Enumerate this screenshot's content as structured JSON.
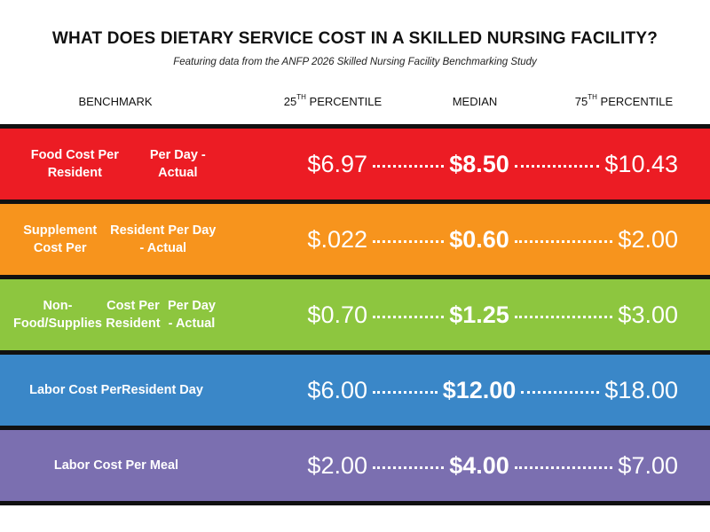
{
  "title": "WHAT DOES DIETARY SERVICE COST IN A SKILLED NURSING FACILITY?",
  "subtitle": "Featuring data from the ANFP 2026 Skilled Nursing Facility Benchmarking Study",
  "headers": {
    "benchmark": "BENCHMARK",
    "p25_num": "25",
    "p25_sup": "TH",
    "p25_text": " PERCENTILE",
    "median": "MEDIAN",
    "p75_num": "75",
    "p75_sup": "TH",
    "p75_text": " PERCENTILE"
  },
  "chart_data": {
    "type": "table",
    "title": "WHAT DOES DIETARY SERVICE COST IN A SKILLED NURSING FACILITY?",
    "columns": [
      "BENCHMARK",
      "25TH PERCENTILE",
      "MEDIAN",
      "75TH PERCENTILE"
    ],
    "rows": [
      {
        "label_lines": [
          "Food Cost Per Resident",
          "Per Day - Actual"
        ],
        "color": "#ec1c24",
        "p25": "$6.97",
        "median": "$8.50",
        "p75": "$10.43"
      },
      {
        "label_lines": [
          "Supplement Cost Per",
          "Resident Per Day - Actual"
        ],
        "color": "#f7941d",
        "p25": "$.022",
        "median": "$0.60",
        "p75": "$2.00"
      },
      {
        "label_lines": [
          "Non-Food/Supplies",
          "Cost Per Resident",
          "Per Day - Actual"
        ],
        "color": "#8dc63f",
        "p25": "$0.70",
        "median": "$1.25",
        "p75": "$3.00"
      },
      {
        "label_lines": [
          "Labor Cost Per",
          "Resident Day"
        ],
        "color": "#3a87c8",
        "p25": "$6.00",
        "median": "$12.00",
        "p75": "$18.00"
      },
      {
        "label_lines": [
          "Labor Cost Per Meal"
        ],
        "color": "#7b6fb0",
        "p25": "$2.00",
        "median": "$4.00",
        "p75": "$7.00"
      }
    ]
  }
}
